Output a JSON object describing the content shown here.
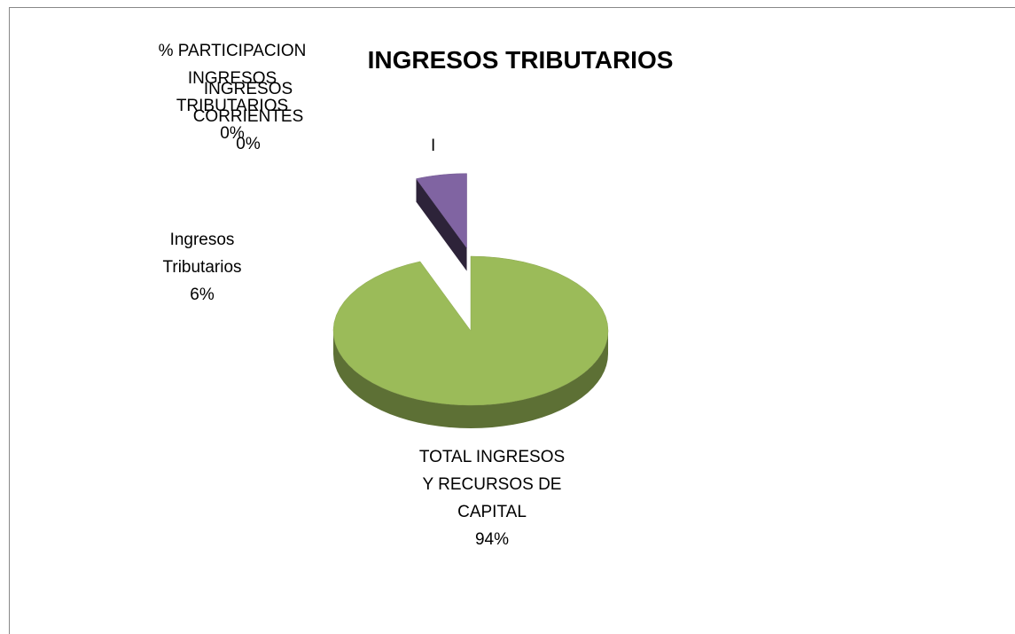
{
  "chart_data": {
    "type": "pie",
    "title": "INGRESOS TRIBUTARIOS",
    "categories": [
      "TOTAL INGRESOS Y RECURSOS DE CAPITAL",
      "Ingresos Tributarios",
      "INGRESOS CORRIENTES",
      "% PARTICIPACION INGRESOS TRIBUTARIOS"
    ],
    "values": [
      94,
      6,
      0,
      0
    ],
    "value_labels": [
      "94%",
      "6%",
      "0%",
      "0%"
    ],
    "colors": [
      "#9bbb59",
      "#8064a2",
      "#4f81bd",
      "#c0504d"
    ],
    "annotations": [
      "I"
    ]
  }
}
